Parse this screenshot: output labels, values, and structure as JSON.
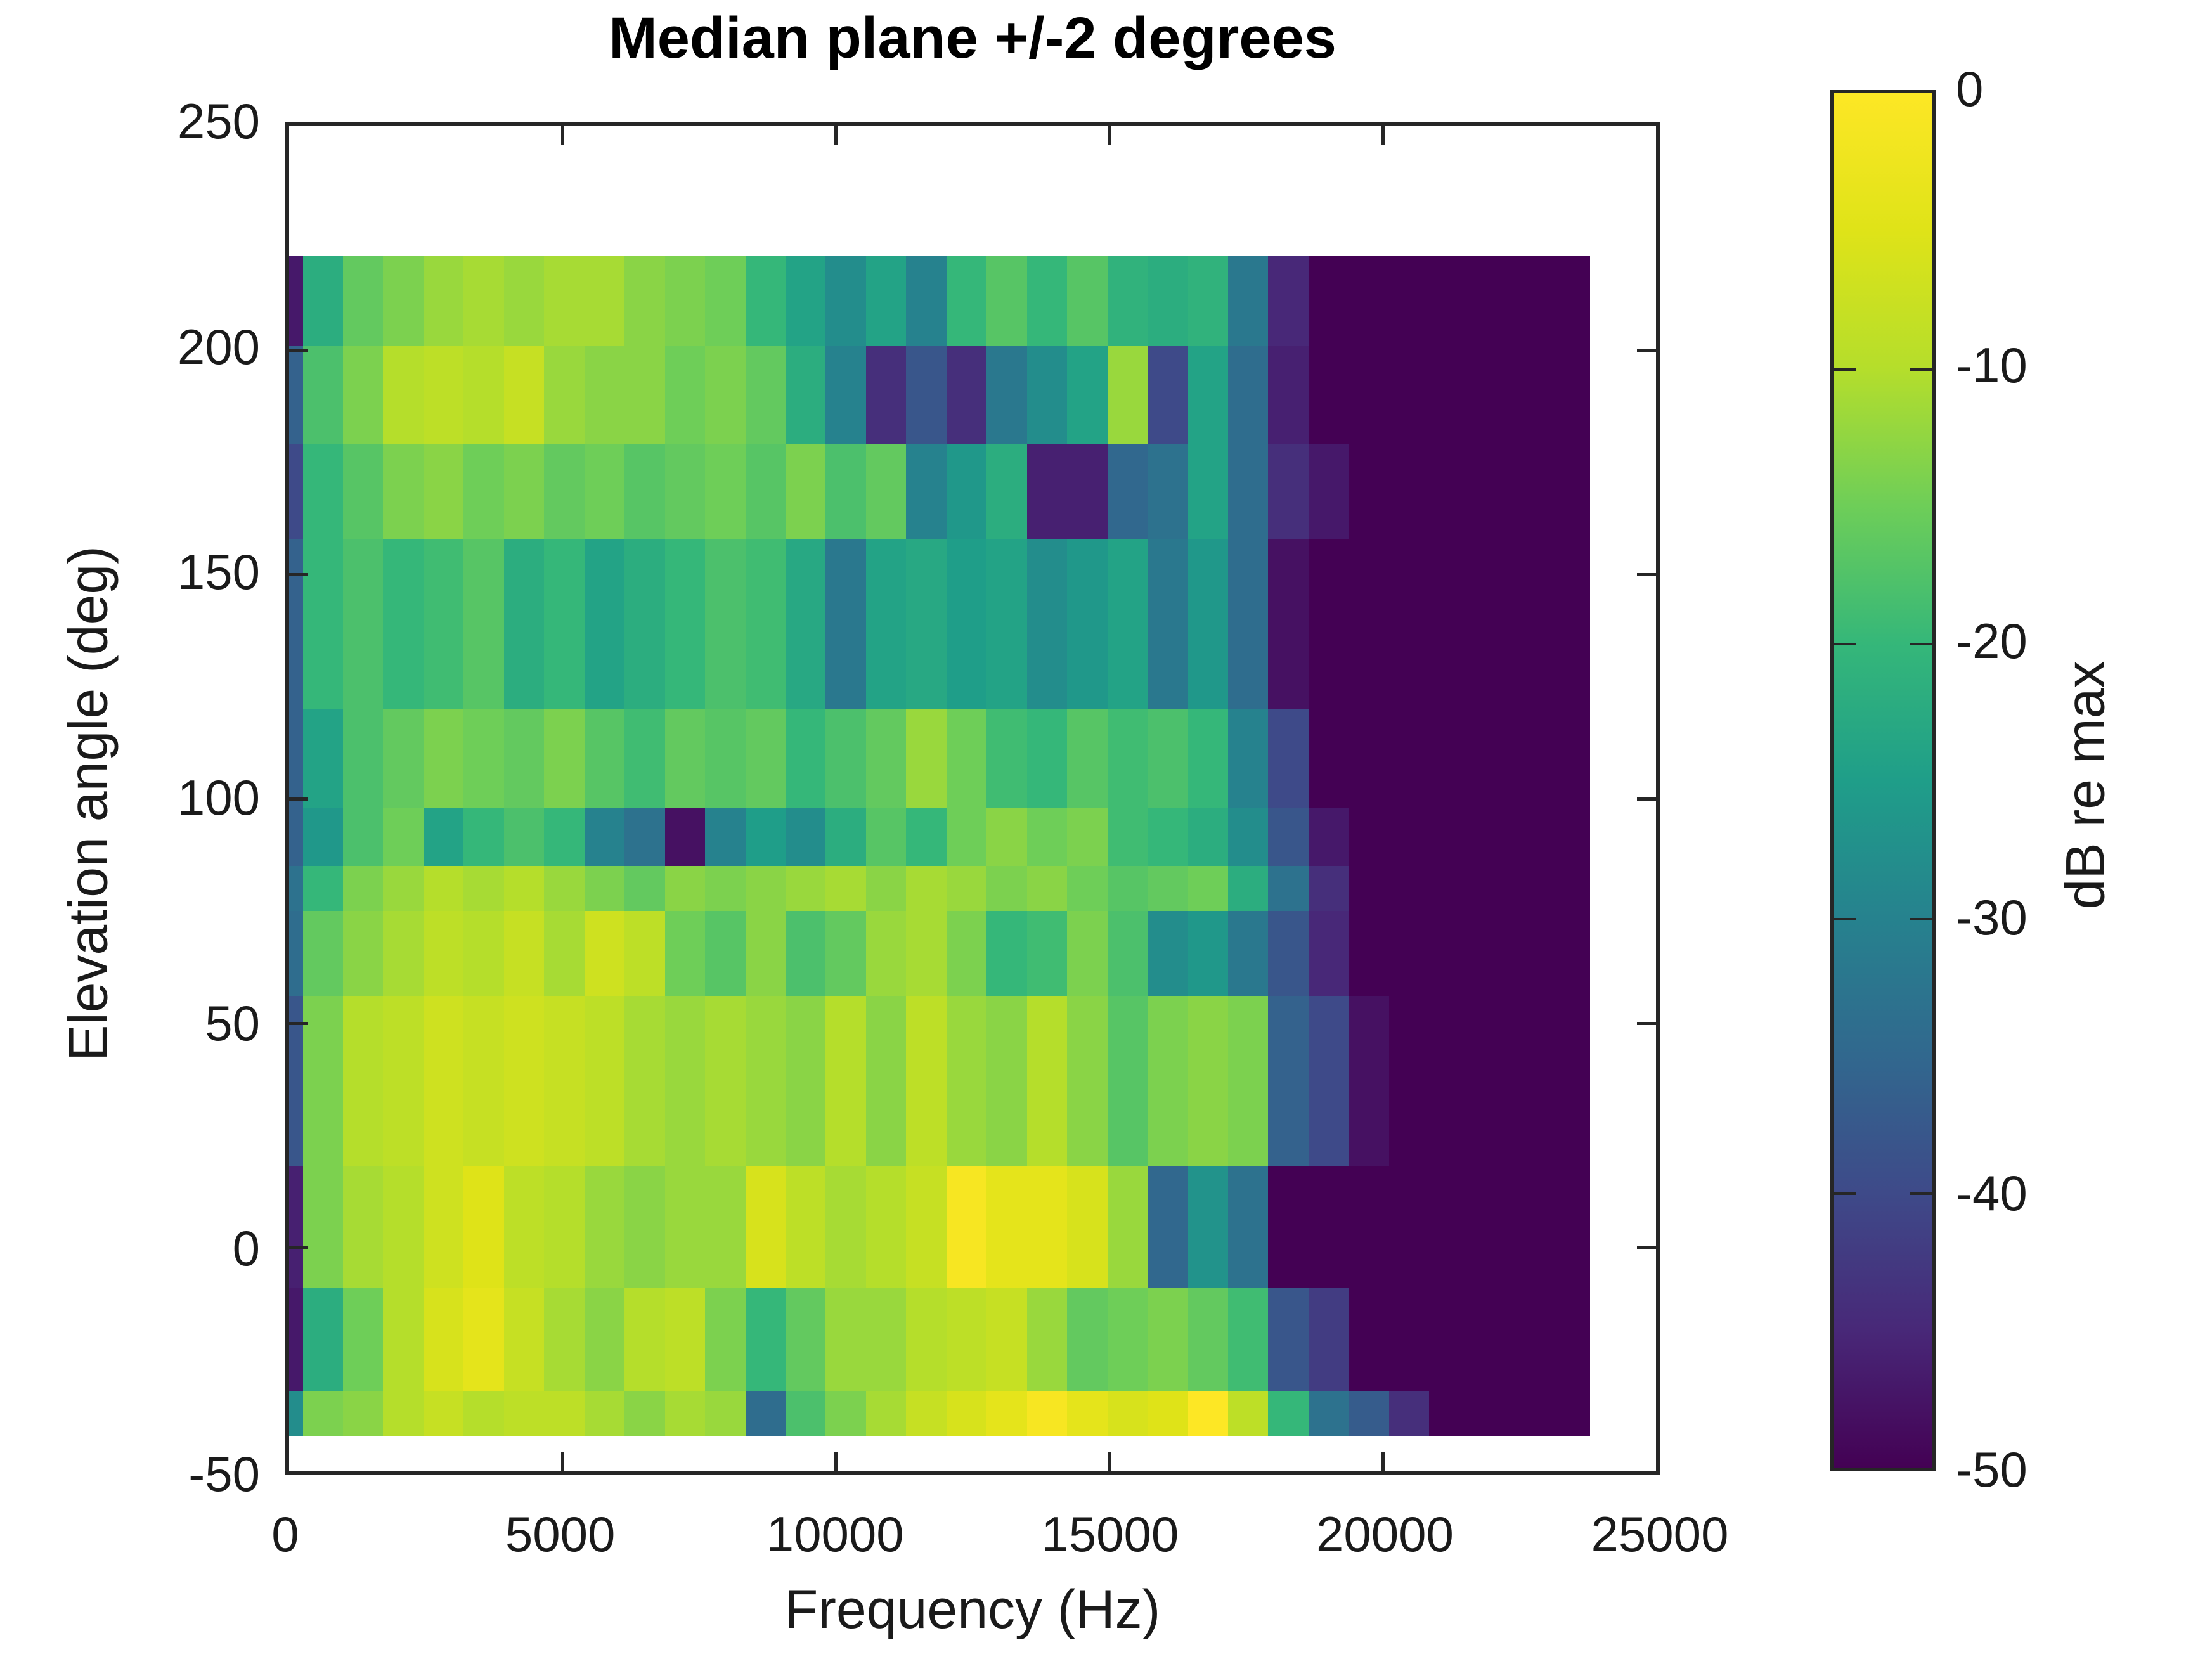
{
  "title": "Median plane +/-2 degrees",
  "xlabel": "Frequency (Hz)",
  "ylabel": "Elevation angle (deg)",
  "axes": {
    "x_range": [
      0,
      25000
    ],
    "y_range": [
      -50,
      250
    ],
    "x_ticks": [
      0,
      5000,
      10000,
      15000,
      20000,
      25000
    ],
    "y_ticks": [
      -50,
      0,
      50,
      100,
      150,
      200,
      250
    ],
    "spine_color": "#262626",
    "background": "#ffffff"
  },
  "colorbar": {
    "label": "dB re max",
    "ticks": [
      0,
      -10,
      -20,
      -30,
      -40,
      -50
    ],
    "min": -50,
    "max": 0
  },
  "colormap": {
    "name": "viridis",
    "stops": [
      [
        0.0,
        "#440154"
      ],
      [
        0.1,
        "#482878"
      ],
      [
        0.2,
        "#3e4a89"
      ],
      [
        0.3,
        "#31688e"
      ],
      [
        0.4,
        "#26828e"
      ],
      [
        0.5,
        "#1f9e89"
      ],
      [
        0.6,
        "#35b779"
      ],
      [
        0.7,
        "#6ece58"
      ],
      [
        0.8,
        "#b5de2b"
      ],
      [
        0.9,
        "#dfe318"
      ],
      [
        1.0,
        "#fde725"
      ]
    ]
  },
  "chart_data": {
    "type": "heatmap",
    "title": "Median plane +/-2 degrees",
    "xlabel": "Frequency (Hz)",
    "ylabel": "Elevation angle (deg)",
    "value_label": "dB re max",
    "value_range": [
      -50,
      0
    ],
    "xlim": [
      0,
      25000
    ],
    "ylim": [
      -50,
      250
    ],
    "grid": false,
    "edge_col_hz": [
      0,
      250
    ],
    "freq_cols_hz": [
      250,
      23800
    ],
    "n_cols": 32,
    "rows": [
      {
        "top": 221,
        "bottom": 201,
        "edge": -47,
        "v": [
          -22,
          -16,
          -14,
          -12,
          -11,
          -12,
          -11,
          -11,
          -13,
          -14,
          -15,
          -20,
          -24,
          -28,
          -24,
          -30,
          -20,
          -17,
          -20,
          -17,
          -21,
          -22,
          -21,
          -32,
          -45,
          -50,
          -50,
          -50,
          -50,
          -50,
          -50,
          -50
        ]
      },
      {
        "top": 201,
        "bottom": 179,
        "edge": -36,
        "v": [
          -18,
          -14,
          -10,
          -9,
          -10,
          -8,
          -12,
          -13,
          -13,
          -15,
          -14,
          -16,
          -22,
          -30,
          -44,
          -38,
          -44,
          -32,
          -28,
          -24,
          -12,
          -40,
          -24,
          -34,
          -46,
          -50,
          -50,
          -50,
          -50,
          -50,
          -50,
          -50
        ]
      },
      {
        "top": 179,
        "bottom": 158,
        "edge": -40,
        "v": [
          -20,
          -17,
          -14,
          -13,
          -15,
          -14,
          -16,
          -15,
          -17,
          -16,
          -15,
          -17,
          -14,
          -18,
          -16,
          -30,
          -26,
          -22,
          -46,
          -46,
          -35,
          -33,
          -24,
          -34,
          -44,
          -47,
          -50,
          -50,
          -50,
          -50,
          -50,
          -50
        ]
      },
      {
        "top": 158,
        "bottom": 120,
        "edge": -36,
        "v": [
          -20,
          -18,
          -20,
          -19,
          -17,
          -22,
          -20,
          -24,
          -22,
          -20,
          -18,
          -19,
          -23,
          -32,
          -24,
          -23,
          -25,
          -24,
          -28,
          -26,
          -24,
          -32,
          -26,
          -34,
          -48,
          -50,
          -50,
          -50,
          -50,
          -50,
          -50,
          -50
        ]
      },
      {
        "top": 120,
        "bottom": 98,
        "edge": -36,
        "v": [
          -24,
          -18,
          -16,
          -14,
          -15,
          -16,
          -14,
          -17,
          -19,
          -16,
          -17,
          -16,
          -20,
          -18,
          -16,
          -12,
          -15,
          -19,
          -20,
          -17,
          -19,
          -18,
          -20,
          -30,
          -40,
          -50,
          -50,
          -50,
          -50,
          -50,
          -50,
          -50
        ]
      },
      {
        "top": 98,
        "bottom": 85,
        "edge": -36,
        "v": [
          -26,
          -18,
          -15,
          -24,
          -20,
          -18,
          -20,
          -30,
          -33,
          -48,
          -30,
          -25,
          -28,
          -22,
          -17,
          -20,
          -15,
          -13,
          -15,
          -14,
          -19,
          -20,
          -22,
          -28,
          -38,
          -47,
          -50,
          -50,
          -50,
          -50,
          -50,
          -50
        ]
      },
      {
        "top": 85,
        "bottom": 75,
        "edge": -33,
        "v": [
          -20,
          -14,
          -12,
          -10,
          -11,
          -10,
          -12,
          -14,
          -16,
          -13,
          -14,
          -13,
          -12,
          -11,
          -13,
          -11,
          -12,
          -14,
          -13,
          -15,
          -17,
          -16,
          -15,
          -22,
          -33,
          -44,
          -50,
          -50,
          -50,
          -50,
          -50,
          -50
        ]
      },
      {
        "top": 75,
        "bottom": 56,
        "edge": -34,
        "v": [
          -16,
          -13,
          -11,
          -9,
          -10,
          -8,
          -11,
          -7,
          -9,
          -15,
          -17,
          -13,
          -18,
          -16,
          -12,
          -11,
          -14,
          -20,
          -19,
          -14,
          -18,
          -28,
          -26,
          -32,
          -38,
          -45,
          -50,
          -50,
          -50,
          -50,
          -50,
          -50
        ]
      },
      {
        "top": 56,
        "bottom": 18,
        "edge": -38,
        "v": [
          -14,
          -10,
          -9,
          -7,
          -8,
          -7,
          -8,
          -9,
          -11,
          -12,
          -11,
          -12,
          -13,
          -10,
          -13,
          -9,
          -12,
          -13,
          -10,
          -13,
          -17,
          -14,
          -13,
          -14,
          -36,
          -40,
          -48,
          -50,
          -50,
          -50,
          -50,
          -50
        ]
      },
      {
        "top": 18,
        "bottom": -9,
        "edge": -46,
        "v": [
          -14,
          -11,
          -10,
          -7,
          -5,
          -9,
          -10,
          -12,
          -13,
          -12,
          -12,
          -6,
          -9,
          -11,
          -10,
          -8,
          -1,
          -4,
          -4,
          -6,
          -12,
          -35,
          -27,
          -33,
          -50,
          -50,
          -50,
          -50,
          -50,
          -50,
          -50,
          -50
        ]
      },
      {
        "top": -9,
        "bottom": -32,
        "edge": -47,
        "v": [
          -22,
          -15,
          -10,
          -6,
          -4,
          -8,
          -11,
          -13,
          -10,
          -9,
          -14,
          -20,
          -16,
          -12,
          -12,
          -10,
          -9,
          -8,
          -12,
          -16,
          -15,
          -14,
          -16,
          -19,
          -38,
          -42,
          -50,
          -50,
          -50,
          -50,
          -50,
          -50
        ]
      },
      {
        "top": -32,
        "bottom": -42,
        "edge": -28,
        "v": [
          -14,
          -13,
          -10,
          -8,
          -10,
          -9,
          -9,
          -11,
          -13,
          -11,
          -12,
          -34,
          -18,
          -14,
          -11,
          -8,
          -6,
          -4,
          -1,
          -4,
          -6,
          -5,
          0,
          -9,
          -20,
          -33,
          -37,
          -44,
          -50,
          -50,
          -50,
          -50
        ]
      }
    ]
  }
}
